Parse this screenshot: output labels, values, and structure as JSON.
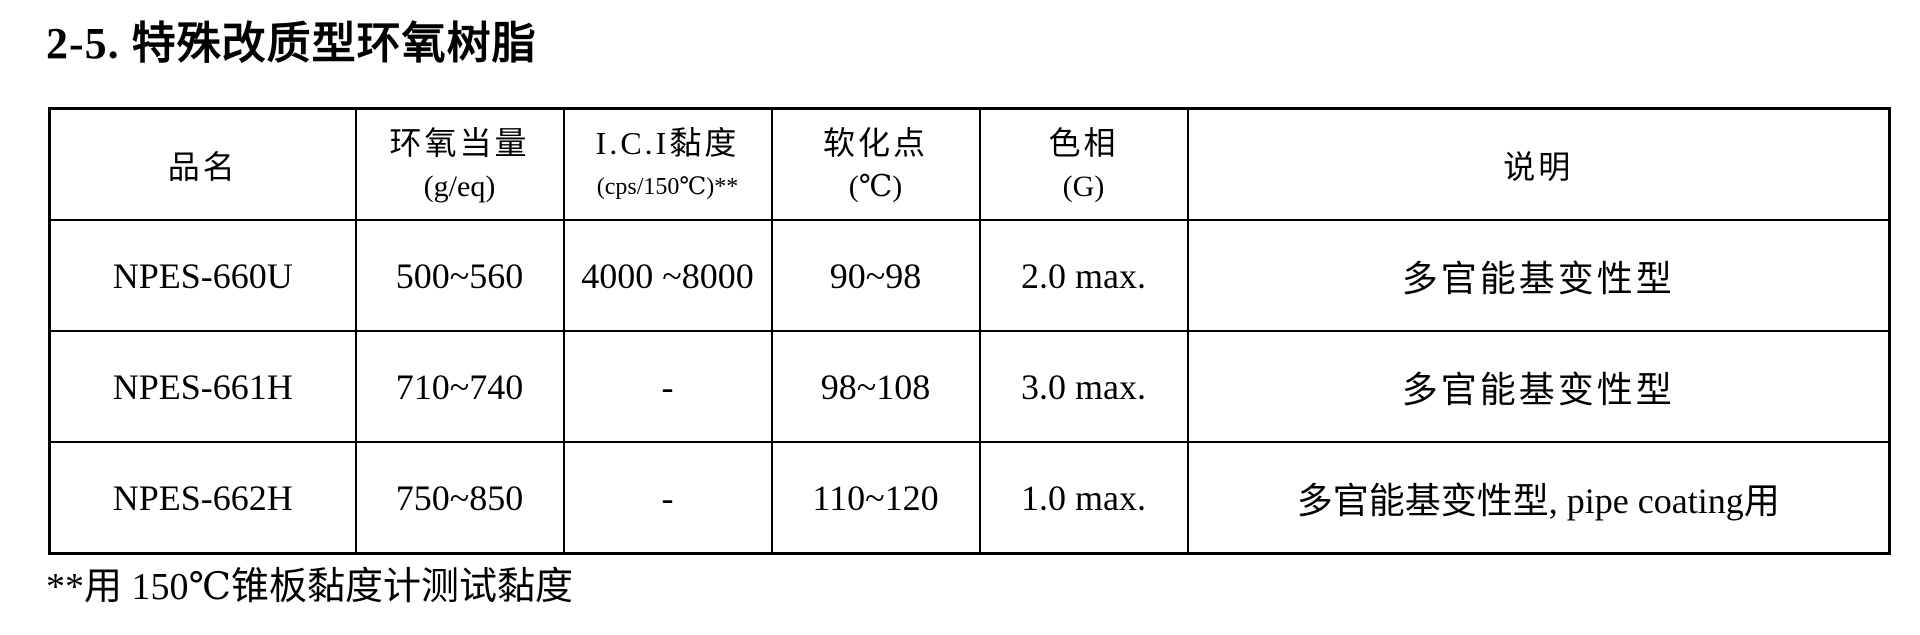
{
  "title": "2-5. 特殊改质型环氧树脂",
  "table": {
    "headers": [
      {
        "main": "品名",
        "unit": ""
      },
      {
        "main": "环氧当量",
        "unit": "(g/eq)"
      },
      {
        "main": "I.C.I黏度",
        "unit": "(cps/150℃)**"
      },
      {
        "main": "软化点",
        "unit": "(℃)"
      },
      {
        "main": "色相",
        "unit": "(G)"
      },
      {
        "main": "说明",
        "unit": ""
      }
    ],
    "rows": [
      [
        "NPES-660U",
        "500~560",
        "4000 ~8000",
        "90~98",
        "2.0 max.",
        "多官能基变性型"
      ],
      [
        "NPES-661H",
        "710~740",
        "-",
        "98~108",
        "3.0 max.",
        "多官能基变性型"
      ],
      [
        "NPES-662H",
        "750~850",
        "-",
        "110~120",
        "1.0 max.",
        "多官能基变性型, pipe coating用"
      ]
    ]
  },
  "footnote": "**用 150℃锥板黏度计测试黏度"
}
